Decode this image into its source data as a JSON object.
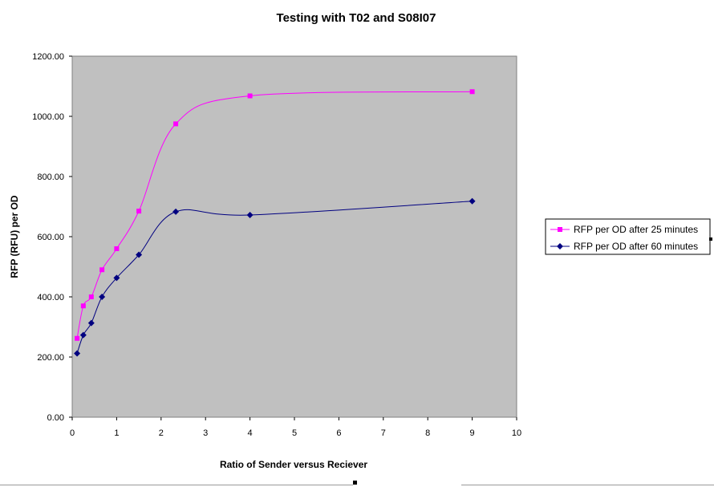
{
  "chart_data": {
    "type": "line",
    "title": "Testing with T02 and S08I07",
    "xlabel": "Ratio of Sender versus Reciever",
    "ylabel": "RFP (RFU) per OD",
    "xlim": [
      0,
      10
    ],
    "ylim": [
      0,
      1200
    ],
    "x_ticks": [
      "0",
      "1",
      "2",
      "3",
      "4",
      "5",
      "6",
      "7",
      "8",
      "9",
      "10"
    ],
    "y_ticks": [
      "0.00",
      "200.00",
      "400.00",
      "600.00",
      "800.00",
      "1000.00",
      "1200.00"
    ],
    "grid": false,
    "plot_background": "#c0c0c0",
    "legend_position": "right",
    "series": [
      {
        "name": "RFP per OD after 25 minutes",
        "color": "#ff00ff",
        "marker": "square",
        "x": [
          0.11,
          0.25,
          0.43,
          0.67,
          1.0,
          1.5,
          2.33,
          4.0,
          9.0
        ],
        "y": [
          262,
          370,
          400,
          490,
          560,
          685,
          975,
          1068,
          1082
        ]
      },
      {
        "name": "RFP per OD after 60 minutes",
        "color": "#000080",
        "marker": "diamond",
        "x": [
          0.11,
          0.25,
          0.43,
          0.67,
          1.0,
          1.5,
          2.33,
          4.0,
          9.0
        ],
        "y": [
          212,
          273,
          313,
          400,
          463,
          540,
          683,
          672,
          718
        ]
      }
    ]
  }
}
